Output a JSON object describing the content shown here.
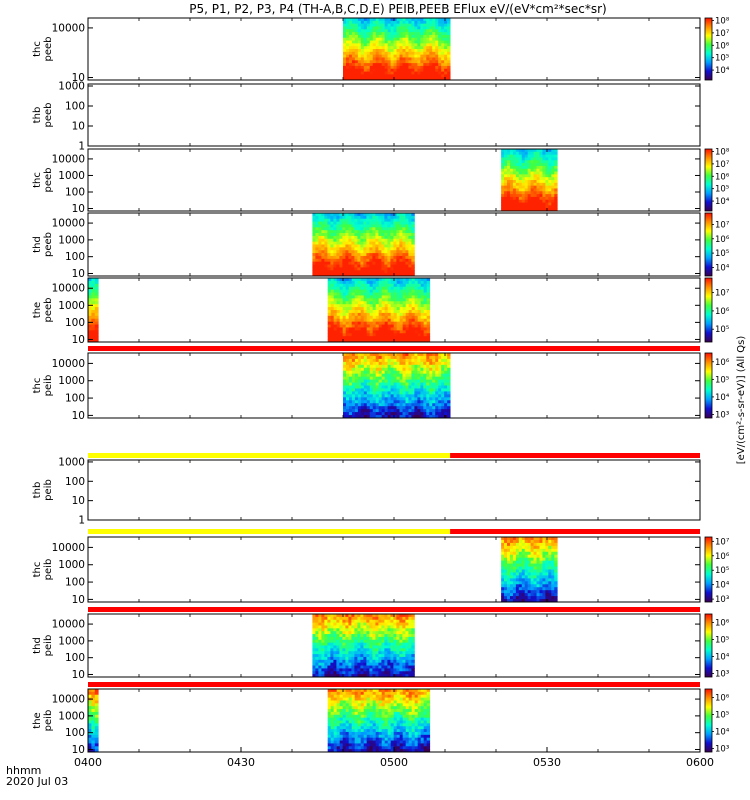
{
  "chart_data": {
    "type": "heatmap",
    "title": "P5, P1, P2, P3, P4 (TH-A,B,C,D,E) PEIB,PEEB EFlux eV/(eV*cm²*sec*sr)",
    "time_label": "hhmm",
    "date_label": "2020 Jul 03",
    "xaxis": {
      "range": [
        "0400",
        "0600"
      ],
      "ticks": [
        "0400",
        "0430",
        "0500",
        "0530",
        "0600"
      ]
    },
    "colorbar_label": "[eV/(cm²-s-sr-eV)] (All Qs)",
    "colorscale": [
      "#3a0050",
      "#1010d0",
      "#00a0ff",
      "#00ffd0",
      "#40ff40",
      "#ffff00",
      "#ff9000",
      "#ff1000"
    ],
    "panels": [
      {
        "label": "thc peeb",
        "yticks": [
          "10",
          "10000"
        ],
        "ylog_range": [
          0.85,
          4.6
        ],
        "data_blocks": [
          {
            "start": "0450",
            "end": "0511"
          }
        ],
        "cbar_ticks": [
          "10⁴",
          "10⁵",
          "10⁶",
          "10⁷",
          "10⁸"
        ],
        "cbar_log_range": [
          3.2,
          8.2
        ]
      },
      {
        "label": "thb peeb",
        "yticks": [
          "1",
          "10",
          "100",
          "1000"
        ],
        "ylog_range": [
          0,
          3.1
        ],
        "data_blocks": [],
        "cbar_ticks": [],
        "cbar_log_range": null
      },
      {
        "label": "thc peeb",
        "yticks": [
          "10",
          "100",
          "1000",
          "10000"
        ],
        "ylog_range": [
          0.85,
          4.6
        ],
        "data_blocks": [
          {
            "start": "0521",
            "end": "0532"
          }
        ],
        "cbar_ticks": [
          "10⁴",
          "10⁵",
          "10⁶",
          "10⁷",
          "10⁸"
        ],
        "cbar_log_range": [
          3.2,
          8.2
        ]
      },
      {
        "label": "thd peeb",
        "yticks": [
          "10",
          "100",
          "1000",
          "10000"
        ],
        "ylog_range": [
          0.85,
          4.6
        ],
        "data_blocks": [
          {
            "start": "0444",
            "end": "0504"
          }
        ],
        "cbar_ticks": [
          "10⁴",
          "10⁵",
          "10⁶",
          "10⁷"
        ],
        "cbar_log_range": [
          3.4,
          7.8
        ]
      },
      {
        "label": "the peeb",
        "yticks": [
          "10",
          "100",
          "1000",
          "10000"
        ],
        "ylog_range": [
          0.85,
          4.6
        ],
        "data_blocks": [
          {
            "start": "0400",
            "end": "0402"
          },
          {
            "start": "0447",
            "end": "0507"
          }
        ],
        "cbar_ticks": [
          "10⁵",
          "10⁶",
          "10⁷"
        ],
        "cbar_log_range": [
          4.3,
          7.8
        ]
      },
      {
        "label": "thc peib",
        "yticks": [
          "10",
          "100",
          "1000",
          "10000"
        ],
        "ylog_range": [
          0.85,
          4.6
        ],
        "data_blocks": [
          {
            "start": "0450",
            "end": "0511"
          }
        ],
        "cbar_ticks": [
          "10³",
          "10⁴",
          "10⁵",
          "10⁶"
        ],
        "cbar_log_range": [
          2.8,
          6.5
        ]
      },
      {
        "label": "thb peib",
        "yticks": [
          "1",
          "10",
          "100",
          "1000"
        ],
        "ylog_range": [
          0,
          3.1
        ],
        "data_blocks": [],
        "cbar_ticks": [],
        "cbar_log_range": null
      },
      {
        "label": "thc peib",
        "yticks": [
          "10",
          "100",
          "1000",
          "10000"
        ],
        "ylog_range": [
          0.85,
          4.6
        ],
        "data_blocks": [
          {
            "start": "0521",
            "end": "0532"
          }
        ],
        "cbar_ticks": [
          "10³",
          "10⁴",
          "10⁵",
          "10⁶",
          "10⁷"
        ],
        "cbar_log_range": [
          2.8,
          7.3
        ]
      },
      {
        "label": "thd peib",
        "yticks": [
          "10",
          "100",
          "1000",
          "10000"
        ],
        "ylog_range": [
          0.85,
          4.6
        ],
        "data_blocks": [
          {
            "start": "0444",
            "end": "0504"
          }
        ],
        "cbar_ticks": [
          "10³",
          "10⁴",
          "10⁵",
          "10⁶"
        ],
        "cbar_log_range": [
          2.8,
          6.5
        ]
      },
      {
        "label": "the peib",
        "yticks": [
          "10",
          "100",
          "1000",
          "10000"
        ],
        "ylog_range": [
          0.85,
          4.6
        ],
        "data_blocks": [
          {
            "start": "0400",
            "end": "0402"
          },
          {
            "start": "0447",
            "end": "0507"
          }
        ],
        "cbar_ticks": [
          "10³",
          "10⁴",
          "10⁵",
          "10⁶"
        ],
        "cbar_log_range": [
          2.8,
          6.5
        ]
      }
    ],
    "status_bars": [
      {
        "after_panel": 4,
        "segments": [
          {
            "start": "0400",
            "end": "0600",
            "color": "#ff0000"
          }
        ]
      },
      {
        "after_panel": 5,
        "segments": [
          {
            "start": "0400",
            "end": "0511",
            "color": "#ffff00"
          },
          {
            "start": "0511",
            "end": "0600",
            "color": "#ff0000"
          }
        ]
      },
      {
        "after_panel": 6,
        "segments": [
          {
            "start": "0400",
            "end": "0511",
            "color": "#ffff00"
          },
          {
            "start": "0511",
            "end": "0600",
            "color": "#ff0000"
          }
        ]
      },
      {
        "after_panel": 7,
        "segments": [
          {
            "start": "0400",
            "end": "0600",
            "color": "#ff0000"
          }
        ]
      },
      {
        "after_panel": 8,
        "segments": [
          {
            "start": "0400",
            "end": "0600",
            "color": "#ff0000"
          }
        ]
      }
    ]
  }
}
